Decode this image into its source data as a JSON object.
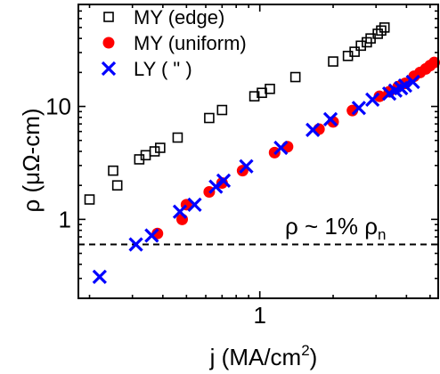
{
  "chart_data": {
    "type": "scatter",
    "title": "",
    "xlabel": {
      "prefix": "j (MA/cm",
      "sup": "2",
      "suffix": ")"
    },
    "ylabel": {
      "prefix": "ρ (μΩ-cm)"
    },
    "xscale": "log",
    "yscale": "log",
    "xlim": [
      0.18,
      5.4
    ],
    "ylim": [
      0.2,
      80
    ],
    "xticks": [
      {
        "value": 1,
        "label": "1"
      }
    ],
    "yticks": [
      {
        "value": 1,
        "label": "1"
      },
      {
        "value": 10,
        "label": "10"
      }
    ],
    "grid": false,
    "legend": "top-left",
    "series": [
      {
        "name": "MY (edge)",
        "marker": "open-square",
        "color": "#000000",
        "points": [
          [
            0.2,
            1.5
          ],
          [
            0.25,
            2.7
          ],
          [
            0.26,
            2.0
          ],
          [
            0.32,
            3.4
          ],
          [
            0.34,
            3.7
          ],
          [
            0.37,
            4.0
          ],
          [
            0.39,
            4.3
          ],
          [
            0.46,
            5.3
          ],
          [
            0.62,
            7.9
          ],
          [
            0.7,
            9.3
          ],
          [
            0.95,
            12.3
          ],
          [
            1.02,
            13.2
          ],
          [
            1.1,
            14.3
          ],
          [
            1.4,
            18.2
          ],
          [
            2.0,
            25.0
          ],
          [
            2.3,
            28.0
          ],
          [
            2.45,
            30.5
          ],
          [
            2.6,
            34.5
          ],
          [
            2.75,
            37.0
          ],
          [
            2.85,
            40.0
          ],
          [
            3.05,
            44.0
          ],
          [
            3.15,
            47.0
          ],
          [
            3.25,
            50.0
          ]
        ]
      },
      {
        "name": "MY (uniform)",
        "marker": "filled-circle",
        "color": "#ff0000",
        "points": [
          [
            0.38,
            0.75
          ],
          [
            0.48,
            1.0
          ],
          [
            0.5,
            1.35
          ],
          [
            0.62,
            1.75
          ],
          [
            0.7,
            2.1
          ],
          [
            0.85,
            2.7
          ],
          [
            1.15,
            3.9
          ],
          [
            1.3,
            4.4
          ],
          [
            1.75,
            6.3
          ],
          [
            2.0,
            7.3
          ],
          [
            2.4,
            9.2
          ],
          [
            3.1,
            12.3
          ],
          [
            3.4,
            13.5
          ],
          [
            3.7,
            15.0
          ],
          [
            3.95,
            16.0
          ],
          [
            4.3,
            18.5
          ],
          [
            4.55,
            20.0
          ],
          [
            4.8,
            21.5
          ],
          [
            5.0,
            23.0
          ],
          [
            5.2,
            24.5
          ]
        ]
      },
      {
        "name": "LY ( \" )",
        "marker": "x",
        "color": "#0000ff",
        "points": [
          [
            0.22,
            0.31
          ],
          [
            0.31,
            0.6
          ],
          [
            0.36,
            0.72
          ],
          [
            0.47,
            1.17
          ],
          [
            0.54,
            1.35
          ],
          [
            0.66,
            1.95
          ],
          [
            0.71,
            2.2
          ],
          [
            0.88,
            2.95
          ],
          [
            1.22,
            4.3
          ],
          [
            1.65,
            6.2
          ],
          [
            1.95,
            7.7
          ],
          [
            2.55,
            9.7
          ],
          [
            2.9,
            11.5
          ],
          [
            3.4,
            13.0
          ],
          [
            3.6,
            13.8
          ],
          [
            3.8,
            14.5
          ],
          [
            3.95,
            15.3
          ],
          [
            4.25,
            16.5
          ]
        ]
      }
    ],
    "reference_line": {
      "value": 0.6,
      "style": "dashed",
      "color": "#000000"
    },
    "annotation": {
      "text": "ρ ~ 1% ρ",
      "subscript": "n",
      "position": "right, above reference line"
    }
  }
}
